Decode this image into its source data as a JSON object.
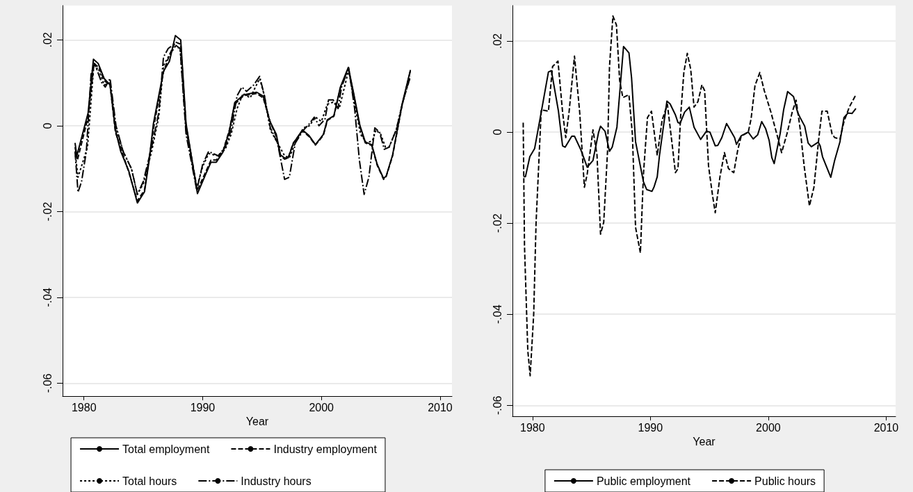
{
  "chart_data": [
    {
      "type": "line",
      "xlabel": "Year",
      "xlim": [
        1978.2,
        2011
      ],
      "xticks": [
        1980,
        1990,
        2000,
        2010
      ],
      "ylim": [
        -0.063,
        0.028
      ],
      "yticks": [
        {
          "value": -0.06,
          "label": "-.06"
        },
        {
          "value": -0.04,
          "label": "-.04"
        },
        {
          "value": -0.02,
          "label": "-.02"
        },
        {
          "value": 0,
          "label": "0"
        },
        {
          "value": 0.02,
          "label": ".02"
        }
      ],
      "grid": "y",
      "legend": "bottom",
      "marker": "none",
      "series": [
        {
          "name": "Total employment",
          "color": "#000000",
          "line_style": "solid",
          "x": [
            1979.25,
            1979.4,
            1980.35,
            1980.8,
            1981.2,
            1981.7,
            1982.2,
            1982.65,
            1983.1,
            1983.77,
            1984.5,
            1985.1,
            1985.5,
            1985.85,
            1986.7,
            1987.2,
            1987.7,
            1988.15,
            1988.6,
            1989.56,
            1990.3,
            1990.7,
            1991.15,
            1991.7,
            1992.25,
            1992.7,
            1993.45,
            1994.55,
            1995.1,
            1995.65,
            1996.2,
            1996.55,
            1996.9,
            1997.2,
            1997.64,
            1998.4,
            1998.96,
            1999.5,
            2000.17,
            2000.5,
            2001.05,
            2001.6,
            2002.27,
            2002.7,
            2003.25,
            2003.7,
            2004.24,
            2004.7,
            2005.24,
            2005.46,
            2006.0,
            2006.78,
            2007.5
          ],
          "values": [
            -0.004,
            -0.007,
            0.003,
            0.0155,
            0.0145,
            0.011,
            0.0095,
            -0.001,
            -0.006,
            -0.0105,
            -0.018,
            -0.0154,
            -0.008,
            0.0005,
            0.0127,
            0.015,
            0.021,
            0.02,
            0.0005,
            -0.0158,
            -0.011,
            -0.0085,
            -0.0085,
            -0.0062,
            -0.0013,
            0.0054,
            0.0072,
            0.0078,
            0.0069,
            0.0011,
            -0.002,
            -0.0068,
            -0.0075,
            -0.0075,
            -0.0041,
            -0.001,
            -0.0023,
            -0.0044,
            -0.002,
            0.0014,
            0.0023,
            0.009,
            0.0136,
            0.0078,
            0,
            -0.0038,
            -0.0044,
            -0.009,
            -0.0123,
            -0.0117,
            -0.0068,
            0.0048,
            0.013
          ]
        },
        {
          "name": "Industry employment",
          "color": "#000000",
          "line_style": "dashed",
          "x": [
            1979.25,
            1979.45,
            1980.35,
            1980.85,
            1981.3,
            1981.7,
            1982.2,
            1982.65,
            1983.2,
            1983.8,
            1984.5,
            1985.1,
            1985.5,
            1985.9,
            1986.7,
            1987.2,
            1987.7,
            1988.15,
            1988.6,
            1989.55,
            1990.3,
            1990.7,
            1991.15,
            1991.7,
            1992.25,
            1992.7,
            1993.45,
            1994.55,
            1995.1,
            1995.7,
            1996.2,
            1996.55,
            1996.9,
            1997.2,
            1997.64,
            1998.4,
            1998.96,
            1999.5,
            2000.17,
            2000.5,
            2001.05,
            2001.6,
            2002.27,
            2002.7,
            2003.25,
            2003.7,
            2004.24,
            2004.7,
            2005.24,
            2005.46,
            2006.0,
            2006.78,
            2007.5
          ],
          "values": [
            -0.005,
            -0.008,
            0.002,
            0.0145,
            0.0135,
            0.0105,
            0.0095,
            -0.0015,
            -0.006,
            -0.011,
            -0.0175,
            -0.015,
            -0.0075,
            0.0,
            0.0125,
            0.0165,
            0.0195,
            0.019,
            0.0,
            -0.015,
            -0.0105,
            -0.008,
            -0.008,
            -0.006,
            -0.001,
            0.005,
            0.007,
            0.0075,
            0.0065,
            0.0008,
            -0.0025,
            -0.007,
            -0.0078,
            -0.0075,
            -0.004,
            -0.0012,
            -0.0025,
            -0.0045,
            -0.0022,
            0.0012,
            0.0022,
            0.0088,
            0.0133,
            0.0075,
            -0.0003,
            -0.004,
            -0.0046,
            -0.0092,
            -0.0125,
            -0.0118,
            -0.007,
            0.0045,
            0.0128
          ]
        },
        {
          "name": "Total hours",
          "color": "#000000",
          "line_style": "dotted",
          "x": [
            1979.25,
            1979.5,
            1980.3,
            1980.8,
            1981.2,
            1981.7,
            1982.2,
            1982.65,
            1983.3,
            1984.0,
            1984.5,
            1985.0,
            1985.7,
            1986.3,
            1986.7,
            1987.1,
            1987.7,
            1988.1,
            1988.6,
            1989.5,
            1990.0,
            1990.5,
            1991.3,
            1991.9,
            1992.4,
            1992.9,
            1993.4,
            1994.0,
            1994.8,
            1995.2,
            1995.7,
            1996.3,
            1996.9,
            1997.3,
            1997.8,
            1998.5,
            1999.0,
            1999.5,
            2000.0,
            2000.5,
            2001.0,
            2001.5,
            2002.3,
            2002.8,
            2003.3,
            2003.8,
            2004.3,
            2004.6,
            2005.0,
            2005.4,
            2005.7,
            2006.3,
            2006.9,
            2007.5
          ],
          "values": [
            -0.006,
            -0.012,
            -0.005,
            0.013,
            0.0135,
            0.0095,
            0.01,
            0.0,
            -0.006,
            -0.01,
            -0.016,
            -0.0135,
            -0.006,
            0.002,
            0.014,
            0.016,
            0.0185,
            0.018,
            -0.001,
            -0.0145,
            -0.0095,
            -0.0065,
            -0.007,
            -0.0055,
            -0.002,
            0.004,
            0.0075,
            0.0065,
            0.011,
            0.007,
            -0.001,
            -0.004,
            -0.007,
            -0.0075,
            -0.004,
            -0.0005,
            0.0,
            0.002,
            0.001,
            0.005,
            0.0055,
            0.004,
            0.013,
            0.005,
            -0.002,
            -0.004,
            -0.0035,
            -0.001,
            -0.002,
            -0.005,
            -0.005,
            -0.001,
            0.006,
            0.0115
          ]
        },
        {
          "name": "Industry hours",
          "color": "#000000",
          "line_style": "dashdot",
          "x": [
            1979.25,
            1979.5,
            1979.8,
            1980.2,
            1980.6,
            1980.9,
            1981.5,
            1981.8,
            1982.2,
            1982.7,
            1983.3,
            1984.0,
            1984.5,
            1985.0,
            1985.7,
            1986.3,
            1986.7,
            1987.1,
            1987.6,
            1988.1,
            1988.6,
            1989.5,
            1990.0,
            1990.5,
            1991.3,
            1991.9,
            1992.4,
            1992.9,
            1993.3,
            1993.7,
            1994.3,
            1994.8,
            1995.2,
            1995.7,
            1996.3,
            1996.9,
            1997.3,
            1997.8,
            1998.5,
            1999.0,
            1999.4,
            1999.8,
            2000.3,
            2000.6,
            2001.0,
            2001.4,
            2001.7,
            2002.3,
            2002.8,
            2003.2,
            2003.6,
            2004.0,
            2004.5,
            2004.9,
            2005.3,
            2005.7,
            2006.3,
            2006.9,
            2007.5
          ],
          "values": [
            -0.006,
            -0.0155,
            -0.013,
            -0.006,
            0.012,
            0.0145,
            0.01,
            0.009,
            0.011,
            0.0,
            -0.006,
            -0.01,
            -0.016,
            -0.013,
            -0.005,
            0.003,
            0.016,
            0.018,
            0.019,
            0.018,
            -0.002,
            -0.015,
            -0.009,
            -0.006,
            -0.007,
            -0.005,
            -0.001,
            0.007,
            0.009,
            0.008,
            0.0095,
            0.0115,
            0.007,
            -0.0005,
            -0.004,
            -0.0125,
            -0.012,
            -0.004,
            -0.001,
            0.0005,
            0.002,
            0.0,
            0.0015,
            0.006,
            0.006,
            0.004,
            0.009,
            0.0135,
            0.004,
            -0.008,
            -0.016,
            -0.012,
            -0.0005,
            -0.0015,
            -0.0055,
            -0.005,
            -0.001,
            0.006,
            0.0115
          ]
        }
      ]
    },
    {
      "type": "line",
      "xlabel": "Year",
      "xlim": [
        1978.3,
        2010.8
      ],
      "xticks": [
        1980,
        1990,
        2000,
        2010
      ],
      "ylim": [
        -0.0624,
        0.0278
      ],
      "yticks": [
        {
          "value": -0.06,
          "label": "-.06"
        },
        {
          "value": -0.04,
          "label": "-.04"
        },
        {
          "value": -0.02,
          "label": "-.02"
        },
        {
          "value": 0,
          "label": "0"
        },
        {
          "value": 0.02,
          "label": ".02"
        }
      ],
      "grid": "y",
      "legend": "bottom",
      "marker": "none",
      "series": [
        {
          "name": "Public employment",
          "color": "#000000",
          "line_style": "solid",
          "x": [
            1979.23,
            1979.4,
            1979.77,
            1980.18,
            1980.74,
            1981.35,
            1981.6,
            1982.2,
            1982.55,
            1982.77,
            1983.33,
            1983.56,
            1984.1,
            1984.64,
            1985.13,
            1985.6,
            1985.77,
            1986.15,
            1986.53,
            1986.76,
            1987.16,
            1987.72,
            1988.18,
            1988.4,
            1988.74,
            1989.41,
            1989.68,
            1990.13,
            1990.3,
            1990.58,
            1990.77,
            1991.4,
            1991.67,
            1992.12,
            1992.34,
            1992.52,
            1992.9,
            1993.3,
            1993.7,
            1994.26,
            1994.75,
            1995.05,
            1995.5,
            1995.72,
            1996.06,
            1996.46,
            1997.14,
            1997.3,
            1997.7,
            1998.3,
            1998.72,
            1999.1,
            1999.44,
            1999.77,
            2000.07,
            2000.3,
            2000.5,
            2001.0,
            2001.3,
            2001.64,
            2002.14,
            2002.48,
            2002.7,
            2003.09,
            2003.38,
            2003.65,
            2004.23,
            2004.4,
            2004.6,
            2005.3,
            2005.63,
            2006.08,
            2006.42,
            2006.76,
            2007.1,
            2007.43
          ],
          "values": [
            -0.0098,
            -0.0098,
            -0.0054,
            -0.0036,
            0.0044,
            0.0132,
            0.0135,
            0.0046,
            -0.003,
            -0.0033,
            -0.0009,
            -0.0009,
            -0.0039,
            -0.0077,
            -0.0062,
            -0.0001,
            0.0013,
            0.0002,
            -0.0042,
            -0.0033,
            0.0011,
            0.0188,
            0.0174,
            0.012,
            -0.0021,
            -0.0109,
            -0.0126,
            -0.013,
            -0.0121,
            -0.0098,
            -0.0051,
            0.0068,
            0.0062,
            0.0038,
            0.0021,
            0.0019,
            0.0044,
            0.0055,
            0.0011,
            -0.0016,
            0.0002,
            0,
            -0.003,
            -0.0029,
            -0.0012,
            0.0019,
            -0.0012,
            -0.0027,
            -0.0008,
            0,
            -0.0015,
            -0.0006,
            0.0023,
            0.0008,
            -0.0018,
            -0.0056,
            -0.0069,
            -0.0004,
            0.0049,
            0.0089,
            0.0078,
            0.0044,
            0.0032,
            0.0013,
            -0.0024,
            -0.0032,
            -0.0022,
            -0.003,
            -0.0054,
            -0.0099,
            -0.0062,
            -0.0021,
            0.0032,
            0.0042,
            0.0041,
            0.0052
          ]
        },
        {
          "name": "Public hours",
          "color": "#000000",
          "line_style": "dashed",
          "x": [
            1979.21,
            1979.32,
            1979.6,
            1979.8,
            1980.1,
            1980.3,
            1980.74,
            1981.35,
            1981.7,
            1982.16,
            1982.55,
            1982.82,
            1983.1,
            1983.56,
            1984.0,
            1984.4,
            1984.64,
            1985.13,
            1985.47,
            1985.77,
            1986.04,
            1986.37,
            1986.53,
            1986.82,
            1987.12,
            1987.39,
            1987.66,
            1988.18,
            1988.47,
            1988.74,
            1989.15,
            1989.41,
            1989.75,
            1990.09,
            1990.58,
            1990.99,
            1991.44,
            1991.9,
            1992.12,
            1992.34,
            1992.57,
            1992.84,
            1993.13,
            1993.42,
            1993.7,
            1994.03,
            1994.37,
            1994.6,
            1994.93,
            1995.27,
            1995.5,
            1995.9,
            1996.28,
            1996.62,
            1997.07,
            1997.41,
            1997.7,
            1998.3,
            1998.54,
            1998.87,
            1999.28,
            1999.66,
            2000.22,
            2000.72,
            2001.13,
            2001.58,
            2002.03,
            2002.36,
            2002.7,
            2003.04,
            2003.49,
            2003.87,
            2004.28,
            2004.55,
            2005.0,
            2005.41,
            2005.63,
            2006.08,
            2006.42,
            2006.87,
            2007.43
          ],
          "values": [
            0.0021,
            -0.025,
            -0.048,
            -0.0535,
            -0.04,
            -0.02,
            0.0049,
            0.0046,
            0.0144,
            0.0156,
            0.0044,
            -0.0012,
            0.0044,
            0.0167,
            0.0044,
            -0.0121,
            -0.0092,
            0.0005,
            -0.005,
            -0.0224,
            -0.0198,
            -0.0039,
            0.0144,
            0.0255,
            0.0235,
            0.0114,
            0.0076,
            0.0082,
            -0.0004,
            -0.0209,
            -0.0265,
            -0.0092,
            0.0032,
            0.0046,
            -0.0051,
            0.0026,
            0.0061,
            -0.0039,
            -0.0089,
            -0.008,
            0.0038,
            0.0132,
            0.0173,
            0.0138,
            0.0055,
            0.0067,
            0.0104,
            0.0091,
            -0.0074,
            -0.0139,
            -0.0177,
            -0.0098,
            -0.0045,
            -0.008,
            -0.0089,
            -0.0039,
            -0.0009,
            0,
            0.0029,
            0.0102,
            0.0131,
            0.0091,
            0.0044,
            -0.0004,
            -0.0045,
            -0.0004,
            0.0044,
            0.007,
            0.0008,
            -0.0074,
            -0.0162,
            -0.0121,
            -0.0015,
            0.0046,
            0.0046,
            -0.0004,
            -0.0012,
            -0.0015,
            0.0023,
            0.0055,
            0.0082
          ]
        }
      ]
    }
  ]
}
